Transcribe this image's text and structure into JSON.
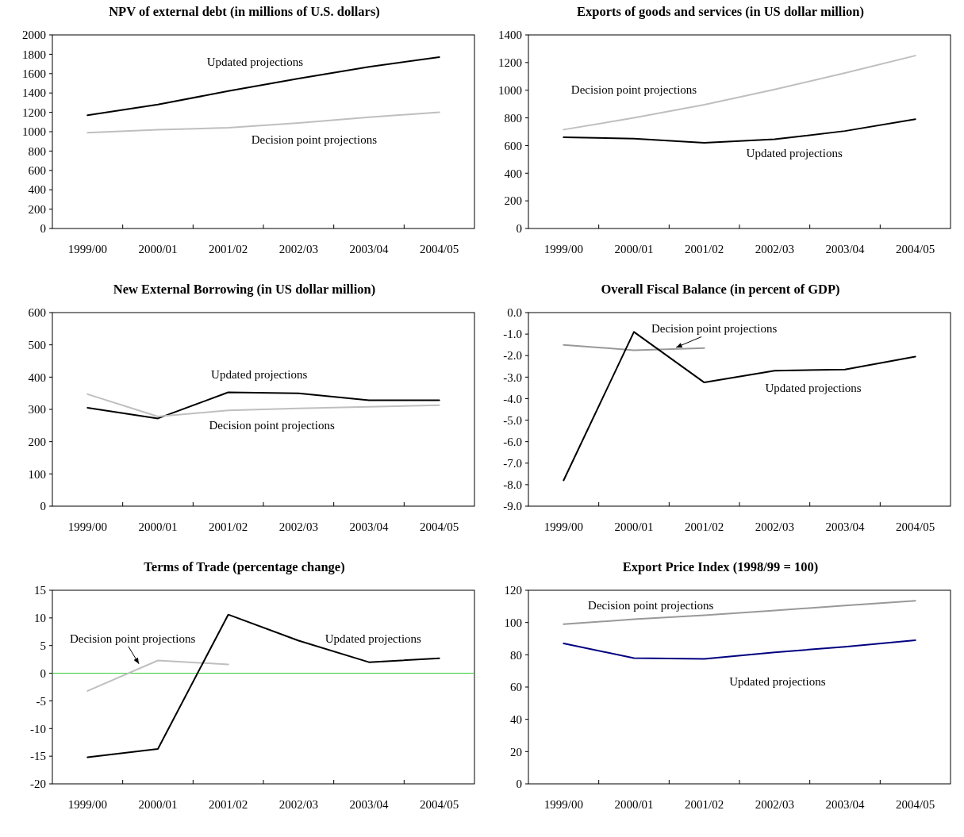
{
  "chart_data": [
    {
      "type": "line",
      "title": "NPV of external debt (in millions of U.S. dollars)",
      "categories": [
        "1999/00",
        "2000/01",
        "2001/02",
        "2002/03",
        "2003/04",
        "2004/05"
      ],
      "ylim": [
        0,
        2000
      ],
      "yticks": [
        0,
        200,
        400,
        600,
        800,
        1000,
        1200,
        1400,
        1600,
        1800,
        2000
      ],
      "series": [
        {
          "name": "Updated projections",
          "color": "#000000",
          "values": [
            1170,
            1280,
            1420,
            1550,
            1670,
            1770
          ]
        },
        {
          "name": "Decision point projections",
          "color": "#bfbfbf",
          "values": [
            990,
            1020,
            1040,
            1090,
            1150,
            1200
          ]
        }
      ]
    },
    {
      "type": "line",
      "title": "Exports of goods and services (in US dollar million)",
      "categories": [
        "1999/00",
        "2000/01",
        "2001/02",
        "2002/03",
        "2003/04",
        "2004/05"
      ],
      "ylim": [
        0,
        1400
      ],
      "yticks": [
        0,
        200,
        400,
        600,
        800,
        1000,
        1200,
        1400
      ],
      "series": [
        {
          "name": "Decision point projections",
          "color": "#bfbfbf",
          "values": [
            715,
            800,
            895,
            1005,
            1125,
            1250
          ]
        },
        {
          "name": "Updated projections",
          "color": "#000000",
          "values": [
            660,
            650,
            620,
            645,
            705,
            790
          ]
        }
      ]
    },
    {
      "type": "line",
      "title": "New External Borrowing (in US dollar million)",
      "categories": [
        "1999/00",
        "2000/01",
        "2001/02",
        "2002/03",
        "2003/04",
        "2004/05"
      ],
      "ylim": [
        0,
        600
      ],
      "yticks": [
        0,
        100,
        200,
        300,
        400,
        500,
        600
      ],
      "series": [
        {
          "name": "Updated projections",
          "color": "#000000",
          "values": [
            305,
            272,
            353,
            350,
            328,
            328
          ]
        },
        {
          "name": "Decision point projections",
          "color": "#bfbfbf",
          "values": [
            347,
            278,
            297,
            303,
            308,
            313
          ]
        }
      ]
    },
    {
      "type": "line",
      "title": "Overall Fiscal Balance (in percent of GDP)",
      "categories": [
        "1999/00",
        "2000/01",
        "2001/02",
        "2002/03",
        "2003/04",
        "2004/05"
      ],
      "ylim": [
        -9,
        0
      ],
      "yticks": [
        {
          "value": 0,
          "label": "0.0"
        },
        {
          "value": -1,
          "label": "-1.0"
        },
        {
          "value": -2,
          "label": "-2.0"
        },
        {
          "value": -3,
          "label": "-3.0"
        },
        {
          "value": -4,
          "label": "-4.0"
        },
        {
          "value": -5,
          "label": "-5.0"
        },
        {
          "value": -6,
          "label": "-6.0"
        },
        {
          "value": -7,
          "label": "-7.0"
        },
        {
          "value": -8,
          "label": "-8.0"
        },
        {
          "value": -9,
          "label": "-9.0"
        }
      ],
      "series": [
        {
          "name": "Decision point projections",
          "color": "#999999",
          "values": [
            -1.5,
            -1.75,
            -1.65,
            null,
            null,
            null
          ]
        },
        {
          "name": "Updated projections",
          "color": "#000000",
          "values": [
            -7.8,
            -0.9,
            -3.25,
            -2.7,
            -2.65,
            -2.05
          ]
        }
      ]
    },
    {
      "type": "line",
      "title": "Terms of Trade (percentage change)",
      "categories": [
        "1999/00",
        "2000/01",
        "2001/02",
        "2002/03",
        "2003/04",
        "2004/05"
      ],
      "ylim": [
        -20,
        15
      ],
      "yticks": [
        -20,
        -15,
        -10,
        -5,
        0,
        5,
        10,
        15
      ],
      "ref_lines": [
        {
          "axis": "y",
          "value": 0,
          "color": "#33cc33"
        }
      ],
      "series": [
        {
          "name": "Decision point projections",
          "color": "#bfbfbf",
          "values": [
            -3.2,
            2.3,
            1.6,
            null,
            null,
            null
          ]
        },
        {
          "name": "Updated projections",
          "color": "#000000",
          "values": [
            -15.2,
            -13.7,
            10.6,
            5.9,
            2.0,
            2.7
          ]
        }
      ]
    },
    {
      "type": "line",
      "title": "Export Price Index (1998/99 = 100)",
      "categories": [
        "1999/00",
        "2000/01",
        "2001/02",
        "2002/03",
        "2003/04",
        "2004/05"
      ],
      "ylim": [
        0,
        120
      ],
      "yticks": [
        0,
        20,
        40,
        60,
        80,
        100,
        120
      ],
      "series": [
        {
          "name": "Decision point projections",
          "color": "#999999",
          "values": [
            99,
            102,
            104.5,
            107.5,
            110.5,
            113.5
          ]
        },
        {
          "name": "Updated projections",
          "color": "#000080",
          "values": [
            87,
            78,
            77.5,
            81.5,
            85,
            89
          ]
        }
      ]
    }
  ]
}
